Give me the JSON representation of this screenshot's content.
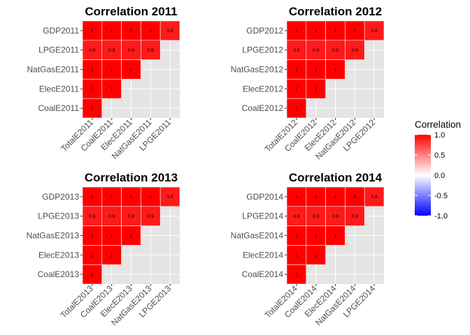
{
  "chart_data": [
    {
      "type": "heatmap",
      "title": "Correlation 2011",
      "x_categories": [
        "TotalE2011",
        "CoalE2011",
        "ElecE2011",
        "NatGasE2011",
        "LPGE2011"
      ],
      "y_categories": [
        "GDP2011",
        "LPGE2011",
        "NatGasE2011",
        "ElecE2011",
        "CoalE2011"
      ],
      "values": [
        [
          1,
          1,
          1,
          1,
          0.9
        ],
        [
          0.9,
          0.9,
          0.9,
          0.9,
          null
        ],
        [
          1,
          1,
          1,
          null,
          null
        ],
        [
          1,
          1,
          null,
          null,
          null
        ],
        [
          1,
          null,
          null,
          null,
          null
        ]
      ],
      "value_labels": [
        [
          "1",
          "1",
          "1",
          "1",
          "0.9"
        ],
        [
          "0.9",
          "0.9",
          "0.9",
          "0.9",
          null
        ],
        [
          "1",
          "1",
          "1",
          null,
          null
        ],
        [
          "1",
          "1",
          null,
          null,
          null
        ],
        [
          "1",
          null,
          null,
          null,
          null
        ]
      ]
    },
    {
      "type": "heatmap",
      "title": "Correlation 2012",
      "x_categories": [
        "TotalE2012",
        "CoalE2012",
        "ElecE2012",
        "NatGasE2012",
        "LPGE2012"
      ],
      "y_categories": [
        "GDP2012",
        "LPGE2012",
        "NatGasE2012",
        "ElecE2012",
        "CoalE2012"
      ],
      "values": [
        [
          1,
          1,
          1,
          1,
          0.9
        ],
        [
          0.9,
          0.9,
          0.9,
          0.9,
          null
        ],
        [
          1,
          1,
          1,
          null,
          null
        ],
        [
          1,
          1,
          null,
          null,
          null
        ],
        [
          1,
          null,
          null,
          null,
          null
        ]
      ],
      "value_labels": [
        [
          "1",
          "1",
          "1",
          "1",
          "0.9"
        ],
        [
          "0.9",
          "0.9",
          "0.9",
          "0.9",
          null
        ],
        [
          "1",
          "1",
          "1",
          null,
          null
        ],
        [
          "1",
          "1",
          null,
          null,
          null
        ],
        [
          "1",
          null,
          null,
          null,
          null
        ]
      ]
    },
    {
      "type": "heatmap",
      "title": "Correlation 2013",
      "x_categories": [
        "TotalE2013",
        "CoalE2013",
        "ElecE2013",
        "NatGasE2013",
        "LPGE2013"
      ],
      "y_categories": [
        "GDP2013",
        "LPGE2013",
        "NatGasE2013",
        "ElecE2013",
        "CoalE2013"
      ],
      "values": [
        [
          1,
          1,
          1,
          1,
          0.9
        ],
        [
          0.9,
          0.9,
          0.9,
          0.9,
          null
        ],
        [
          1,
          1,
          1,
          null,
          null
        ],
        [
          1,
          1,
          null,
          null,
          null
        ],
        [
          1,
          null,
          null,
          null,
          null
        ]
      ],
      "value_labels": [
        [
          "1",
          "1",
          "1",
          "1",
          "0.9"
        ],
        [
          "0.9",
          "0.9",
          "0.9",
          "0.9",
          null
        ],
        [
          "1",
          "1",
          "1",
          null,
          null
        ],
        [
          "1",
          "1",
          null,
          null,
          null
        ],
        [
          "1",
          null,
          null,
          null,
          null
        ]
      ]
    },
    {
      "type": "heatmap",
      "title": "Correlation 2014",
      "x_categories": [
        "TotalE2014",
        "CoalE2014",
        "ElecE2014",
        "NatGasE2014",
        "LPGE2014"
      ],
      "y_categories": [
        "GDP2014",
        "LPGE2014",
        "NatGasE2014",
        "ElecE2014",
        "CoalE2014"
      ],
      "values": [
        [
          1,
          1,
          1,
          1,
          0.9
        ],
        [
          0.9,
          0.9,
          0.9,
          0.9,
          null
        ],
        [
          1,
          1,
          1,
          null,
          null
        ],
        [
          1,
          1,
          null,
          null,
          null
        ],
        [
          1,
          null,
          null,
          null,
          null
        ]
      ],
      "value_labels": [
        [
          "1",
          "1",
          "1",
          "1",
          "0.9"
        ],
        [
          "0.9",
          "0.9",
          "0.9",
          "0.9",
          null
        ],
        [
          "1",
          "1",
          "1",
          null,
          null
        ],
        [
          "1",
          "1",
          null,
          null,
          null
        ],
        [
          "1",
          null,
          null,
          null,
          null
        ]
      ]
    }
  ],
  "legend": {
    "title": "Correlation",
    "breaks": [
      1.0,
      0.5,
      0.0,
      -0.5,
      -1.0
    ],
    "labels": [
      "1.0",
      "0.5",
      "0.0",
      "-0.5",
      "-1.0"
    ],
    "limits": [
      -1,
      1
    ],
    "colors": {
      "low": "#0000ff",
      "mid": "#ffffff",
      "high": "#ff0000"
    }
  },
  "style": {
    "panel_background": "#e5e5e5",
    "grid_line": "#ffffff",
    "cell_border": "#ffffff",
    "tick_label_color": "#4d4d4d",
    "legend_position": "right"
  }
}
